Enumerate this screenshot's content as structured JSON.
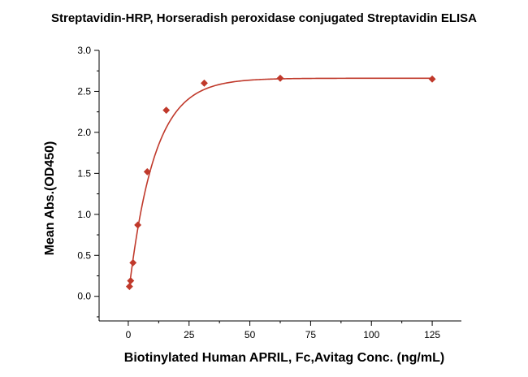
{
  "chart_data": {
    "type": "scatter",
    "title": "Streptavidin-HRP, Horseradish peroxidase conjugated Streptavidin ELISA",
    "xlabel": "Biotinylated Human APRIL, Fc,Avitag Conc. (ng/mL)",
    "ylabel": "Mean Abs.(OD450)",
    "xlim": [
      -12,
      137
    ],
    "ylim": [
      -0.3,
      3.0
    ],
    "xticks": [
      0,
      25,
      50,
      75,
      100,
      125
    ],
    "xtick_labels": [
      "0",
      "25",
      "50",
      "75",
      "100",
      "125"
    ],
    "yticks": [
      0.0,
      0.5,
      1.0,
      1.5,
      2.0,
      2.5,
      3.0
    ],
    "ytick_labels": [
      "0.0",
      "0.5",
      "1.0",
      "1.5",
      "2.0",
      "2.5",
      "3.0"
    ],
    "grid": false,
    "series": [
      {
        "points": [
          {
            "x": 0.49,
            "y": 0.12
          },
          {
            "x": 0.98,
            "y": 0.19
          },
          {
            "x": 1.95,
            "y": 0.41
          },
          {
            "x": 3.91,
            "y": 0.87
          },
          {
            "x": 7.81,
            "y": 1.52
          },
          {
            "x": 15.63,
            "y": 2.27
          },
          {
            "x": 31.25,
            "y": 2.6
          },
          {
            "x": 62.5,
            "y": 2.66
          },
          {
            "x": 125,
            "y": 2.65
          }
        ],
        "fit": {
          "model": "exponential-rise",
          "top": 2.66,
          "rate": 0.095
        }
      }
    ],
    "color": "#c0392b"
  }
}
